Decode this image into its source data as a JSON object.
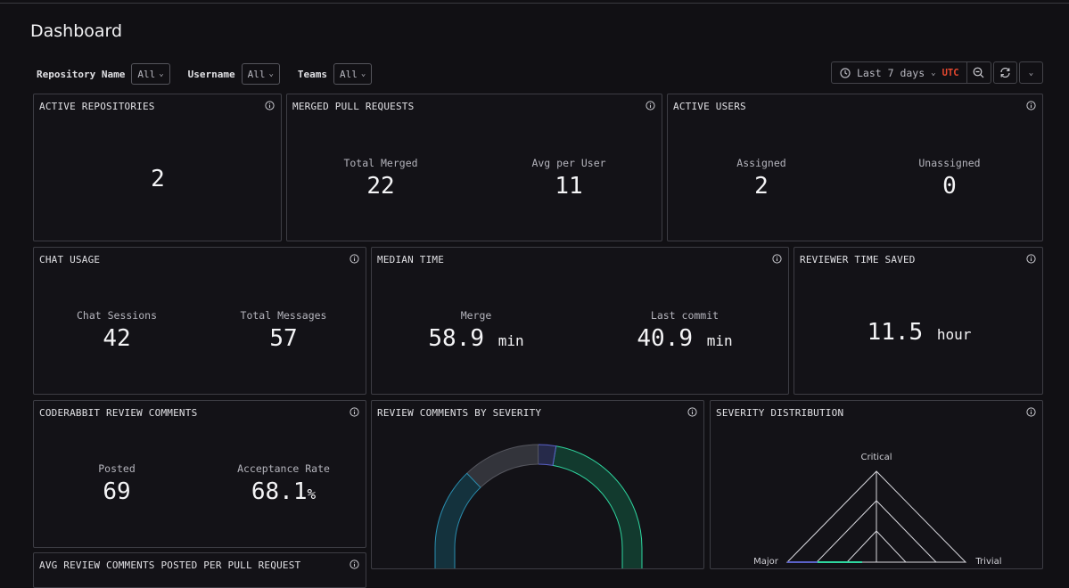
{
  "page": {
    "title": "Dashboard"
  },
  "filters": [
    {
      "label": "Repository Name",
      "value": "All"
    },
    {
      "label": "Username",
      "value": "All"
    },
    {
      "label": "Teams",
      "value": "All"
    }
  ],
  "time_controls": {
    "range": "Last 7 days",
    "timezone": "UTC"
  },
  "icons": {
    "clock": "clock-icon",
    "zoom_out": "zoom-out-icon",
    "refresh": "refresh-icon",
    "chevron": "chevron-down-icon",
    "info": "info-icon"
  },
  "colors": {
    "utc": "#e8482f",
    "donut_green": "#123a2e",
    "donut_grey": "#33343b",
    "donut_teal": "#14323d",
    "donut_purple": "#262a4a"
  },
  "panels": {
    "active_repositories": {
      "title": "ACTIVE REPOSITORIES",
      "value": "2"
    },
    "merged_pull_requests": {
      "title": "MERGED PULL REQUESTS",
      "stats": [
        {
          "label": "Total Merged",
          "value": "22"
        },
        {
          "label": "Avg per User",
          "value": "11"
        }
      ]
    },
    "active_users": {
      "title": "ACTIVE USERS",
      "stats": [
        {
          "label": "Assigned",
          "value": "2"
        },
        {
          "label": "Unassigned",
          "value": "0"
        }
      ]
    },
    "chat_usage": {
      "title": "CHAT USAGE",
      "stats": [
        {
          "label": "Chat Sessions",
          "value": "42"
        },
        {
          "label": "Total Messages",
          "value": "57"
        }
      ]
    },
    "median_time": {
      "title": "MEDIAN TIME",
      "stats": [
        {
          "label": "Merge",
          "value": "58.9",
          "unit": "min"
        },
        {
          "label": "Last commit",
          "value": "40.9",
          "unit": "min"
        }
      ]
    },
    "reviewer_time_saved": {
      "title": "REVIEWER TIME SAVED",
      "value": "11.5",
      "unit": "hour"
    },
    "coderabbit_review_comments": {
      "title": "CODERABBIT REVIEW COMMENTS",
      "stats": [
        {
          "label": "Posted",
          "value": "69"
        },
        {
          "label": "Acceptance Rate",
          "value": "68.1",
          "unit": "%"
        }
      ]
    },
    "review_comments_by_severity": {
      "title": "REVIEW COMMENTS BY SEVERITY"
    },
    "severity_distribution": {
      "title": "SEVERITY DISTRIBUTION",
      "axes": [
        "Critical",
        "Major",
        "Trivial"
      ]
    },
    "avg_review_comments": {
      "title": "AVG REVIEW COMMENTS POSTED PER PULL REQUEST"
    }
  }
}
